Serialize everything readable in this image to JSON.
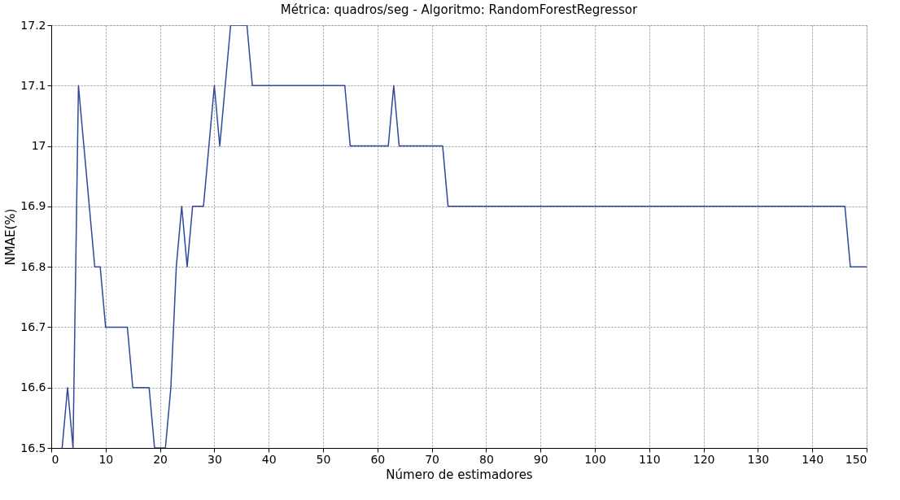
{
  "chart_data": {
    "type": "line",
    "title": "Métrica: quadros/seg - Algoritmo: RandomForestRegressor",
    "xlabel": "Número de estimadores",
    "ylabel": "NMAE(%)",
    "x": [
      2,
      3,
      4,
      5,
      6,
      7,
      8,
      9,
      10,
      14,
      15,
      18,
      19,
      21,
      22,
      23,
      24,
      25,
      26,
      28,
      29,
      30,
      31,
      32,
      33,
      36,
      37,
      54,
      55,
      62,
      63,
      64,
      72,
      73,
      146,
      147,
      150
    ],
    "series": [
      {
        "color": "#2f4a9a",
        "values": [
          16.5,
          16.6,
          16.5,
          17.1,
          17.0,
          16.9,
          16.8,
          16.8,
          16.7,
          16.7,
          16.6,
          16.6,
          16.5,
          16.5,
          16.6,
          16.8,
          16.9,
          16.8,
          16.9,
          16.9,
          17.0,
          17.1,
          17.0,
          17.1,
          17.2,
          17.2,
          17.1,
          17.1,
          17.0,
          17.0,
          17.1,
          17.0,
          17.0,
          16.9,
          16.9,
          16.8,
          16.8
        ]
      }
    ],
    "xlim": [
      0,
      150
    ],
    "xticks": [
      0,
      10,
      20,
      30,
      40,
      50,
      60,
      70,
      80,
      90,
      100,
      110,
      120,
      130,
      140,
      150
    ],
    "ylim": [
      16.5,
      17.2
    ],
    "yticks": [
      16.5,
      16.6,
      16.7,
      16.8,
      16.9,
      {
        "value": 17,
        "label": "17"
      },
      17.1,
      17.2
    ],
    "grid": true,
    "legend": false,
    "marker": "none",
    "line_style": "solid"
  }
}
